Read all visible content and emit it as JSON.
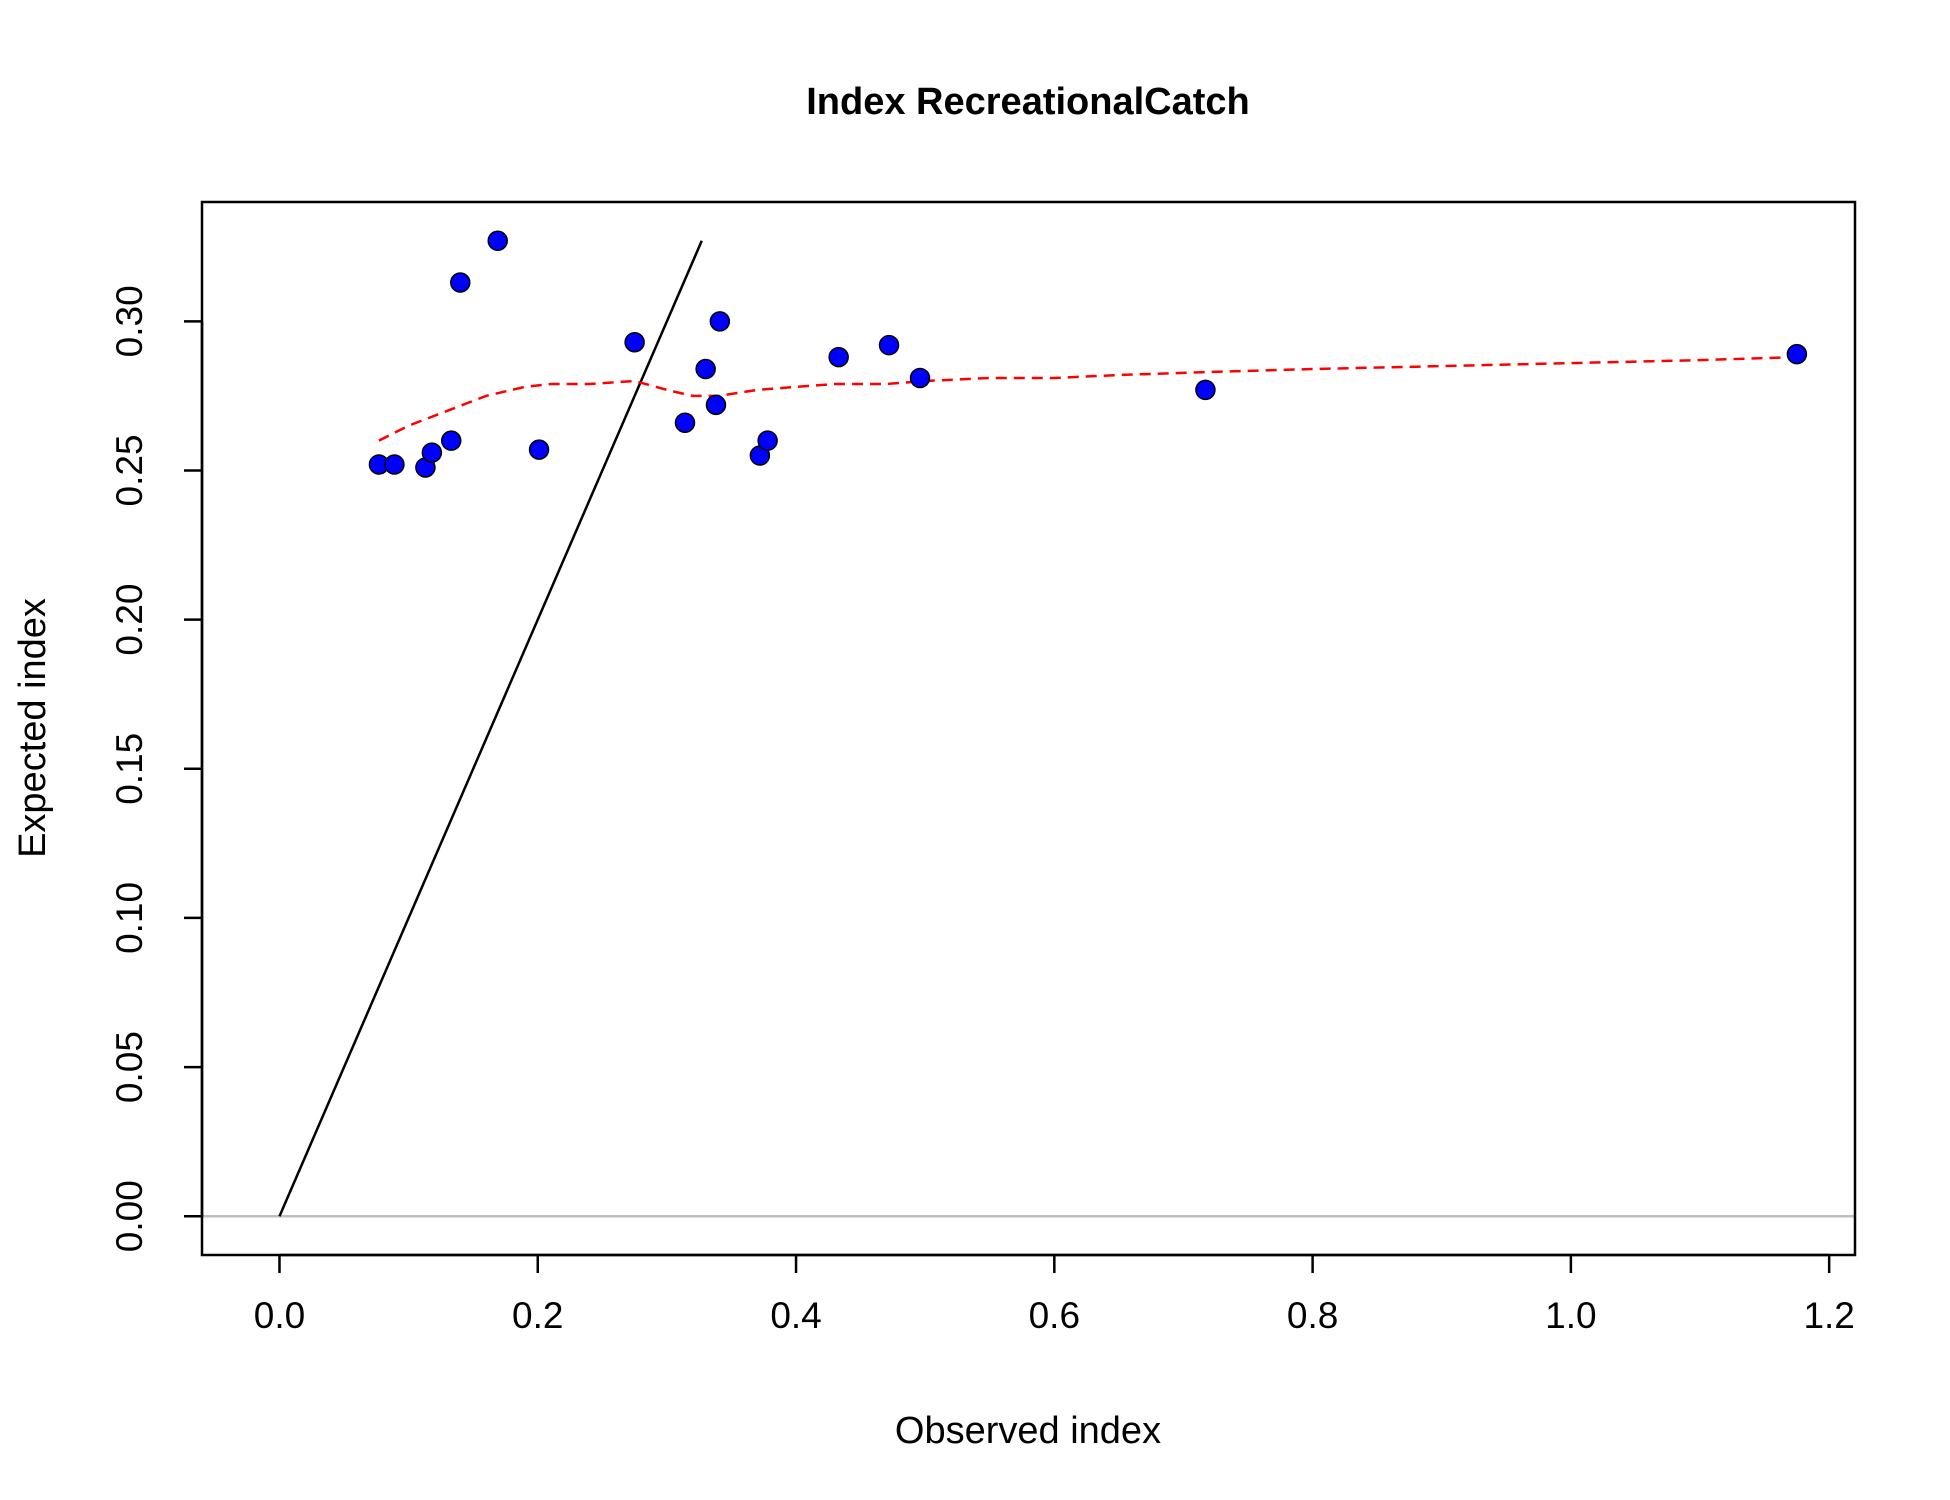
{
  "chart_data": {
    "type": "scatter",
    "title": "Index RecreationalCatch",
    "xlabel": "Observed index",
    "ylabel": "Expected index",
    "xlim": [
      -0.06,
      1.22
    ],
    "ylim": [
      -0.013,
      0.34
    ],
    "xticks": [
      "0.0",
      "0.2",
      "0.4",
      "0.6",
      "0.8",
      "1.0",
      "1.2"
    ],
    "yticks": [
      "0.00",
      "0.05",
      "0.10",
      "0.15",
      "0.20",
      "0.25",
      "0.30"
    ],
    "grid": false,
    "legend": "none",
    "colors": {
      "points": "#0000ff",
      "point_outline": "#000000",
      "smoother": "#ff0000",
      "identity_line": "#000000",
      "zero_line": "#bebebe",
      "frame": "#000000"
    },
    "points": {
      "x": [
        0.077,
        0.089,
        0.113,
        0.118,
        0.133,
        0.14,
        0.169,
        0.201,
        0.275,
        0.314,
        0.33,
        0.338,
        0.341,
        0.372,
        0.378,
        0.433,
        0.472,
        0.496,
        0.717,
        1.175
      ],
      "y": [
        0.252,
        0.252,
        0.251,
        0.256,
        0.26,
        0.313,
        0.327,
        0.257,
        0.293,
        0.266,
        0.284,
        0.272,
        0.3,
        0.255,
        0.26,
        0.288,
        0.292,
        0.281,
        0.277,
        0.289
      ]
    },
    "smoother": {
      "x": [
        0.077,
        0.1,
        0.13,
        0.16,
        0.19,
        0.21,
        0.24,
        0.275,
        0.3,
        0.32,
        0.34,
        0.37,
        0.4,
        0.43,
        0.47,
        0.5,
        0.55,
        0.6,
        0.65,
        0.72,
        0.8,
        0.9,
        1.0,
        1.1,
        1.175
      ],
      "y": [
        0.26,
        0.265,
        0.27,
        0.275,
        0.278,
        0.279,
        0.279,
        0.28,
        0.277,
        0.275,
        0.275,
        0.277,
        0.278,
        0.279,
        0.279,
        0.28,
        0.281,
        0.281,
        0.282,
        0.283,
        0.284,
        0.285,
        0.286,
        0.287,
        0.288
      ]
    },
    "identity_line": {
      "x": [
        0,
        0.327
      ],
      "y": [
        0,
        0.327
      ]
    },
    "zero_line": {
      "y": 0
    }
  }
}
